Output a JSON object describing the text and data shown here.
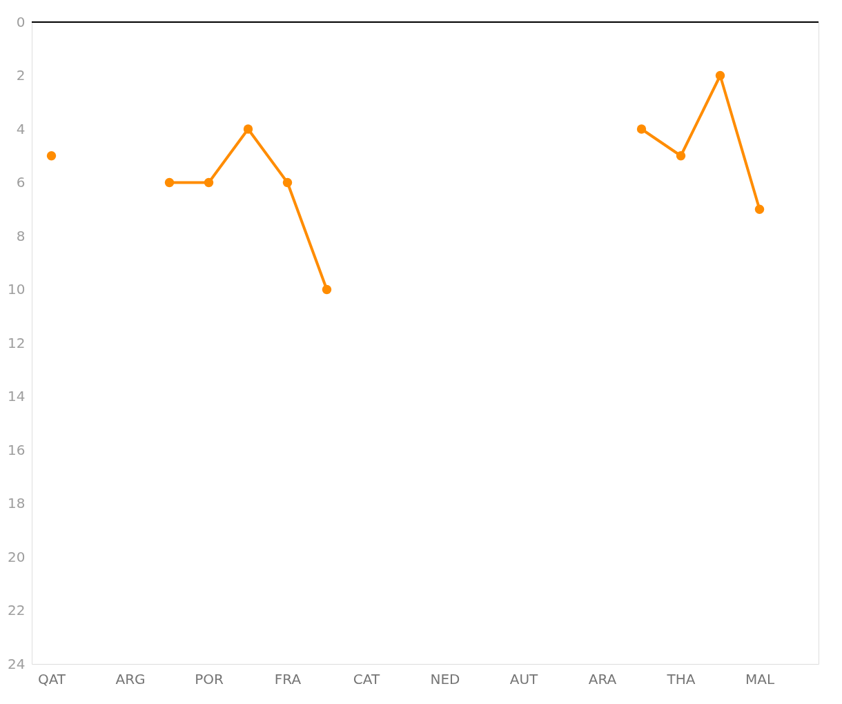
{
  "chart_data": {
    "type": "line",
    "categories": [
      "QAT",
      null,
      "ARG",
      null,
      "POR",
      null,
      "FRA",
      null,
      "CAT",
      null,
      "NED",
      null,
      "AUT",
      null,
      "ARA",
      null,
      "THA",
      null,
      "MAL",
      null
    ],
    "series": [
      {
        "color": "#ff8c00",
        "values": [
          5,
          null,
          null,
          6,
          6,
          4,
          6,
          10,
          null,
          null,
          null,
          null,
          null,
          null,
          null,
          4,
          5,
          2,
          7,
          null
        ]
      }
    ],
    "ylim": [
      24,
      0
    ],
    "yticks": [
      0,
      2,
      4,
      6,
      8,
      10,
      12,
      14,
      16,
      18,
      20,
      22,
      24
    ],
    "ref_lines": [
      {
        "axis": "y",
        "value": 0,
        "color": "#000000"
      }
    ],
    "marker": "circle",
    "line_style": "solid"
  }
}
